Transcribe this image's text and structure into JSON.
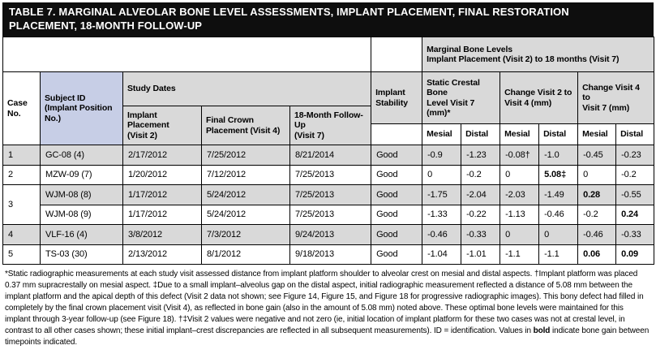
{
  "title": "TABLE 7. MARGINAL ALVEOLAR BONE LEVEL ASSESSMENTS, IMPLANT PLACEMENT, FINAL RESTORATION\nPLACEMENT, 18-MONTH FOLLOW-UP",
  "colors": {
    "title_bg": "#0e0e0e",
    "header_gray": "#d9d9d9",
    "subject_blue": "#c7cee6",
    "row_shade": "#d9d9d9",
    "border": "#000000"
  },
  "table": {
    "header": {
      "marginal_group": "Marginal Bone Levels\nImplant Placement (Visit 2) to 18 months (Visit 7)",
      "case_no": "Case No.",
      "subject_id": "Subject ID\n(Implant Position\nNo.)",
      "study_dates": "Study Dates",
      "implant_placement": "Implant Placement\n(Visit 2)",
      "final_crown": "Final Crown\nPlacement (Visit 4)",
      "follow_up": "18-Month Follow-Up\n(Visit 7)",
      "implant_stability": "Implant\nStability",
      "static_crestal": "Static Crestal Bone\nLevel Visit 7 (mm)*",
      "change_v2_v4": "Change Visit 2 to\nVisit 4 (mm)",
      "change_v4_v7": "Change Visit 4 to\nVisit 7 (mm)",
      "mesial": "Mesial",
      "distal": "Distal"
    },
    "rows": [
      {
        "case_no": "1",
        "case_rowspan": 1,
        "shaded": true,
        "subject_id": "GC-08 (4)",
        "implant_placement": "2/17/2012",
        "final_crown": "7/25/2012",
        "follow_up": "8/21/2014",
        "stability": "Good",
        "values": [
          "-0.9",
          "-1.23",
          "-0.08†",
          "-1.0",
          "-0.45",
          "-0.23"
        ],
        "bold_indices": []
      },
      {
        "case_no": "2",
        "case_rowspan": 1,
        "shaded": false,
        "subject_id": "MZW-09 (7)",
        "implant_placement": "1/20/2012",
        "final_crown": "7/12/2012",
        "follow_up": "7/25/2013",
        "stability": "Good",
        "values": [
          "0",
          "-0.2",
          "0",
          "5.08‡",
          "0",
          "-0.2"
        ],
        "bold_indices": [
          3
        ]
      },
      {
        "case_no": "3",
        "case_rowspan": 2,
        "shaded": true,
        "subject_id": "WJM-08 (8)",
        "implant_placement": "1/17/2012",
        "final_crown": "5/24/2012",
        "follow_up": "7/25/2013",
        "stability": "Good",
        "values": [
          "-1.75",
          "-2.04",
          "-2.03",
          "-1.49",
          "0.28",
          "-0.55"
        ],
        "bold_indices": [
          4
        ]
      },
      {
        "case_no": null,
        "case_rowspan": 0,
        "shaded": false,
        "subject_id": "WJM-08 (9)",
        "implant_placement": "1/17/2012",
        "final_crown": "5/24/2012",
        "follow_up": "7/25/2013",
        "stability": "Good",
        "values": [
          "-1.33",
          "-0.22",
          "-1.13",
          "-0.46",
          "-0.2",
          "0.24"
        ],
        "bold_indices": [
          5
        ]
      },
      {
        "case_no": "4",
        "case_rowspan": 1,
        "shaded": true,
        "subject_id": "VLF-16 (4)",
        "implant_placement": "3/8/2012",
        "final_crown": "7/3/2012",
        "follow_up": "9/24/2013",
        "stability": "Good",
        "values": [
          "-0.46",
          "-0.33",
          "0",
          "0",
          "-0.46",
          "-0.33"
        ],
        "bold_indices": []
      },
      {
        "case_no": "5",
        "case_rowspan": 1,
        "shaded": false,
        "subject_id": "TS-03 (30)",
        "implant_placement": "2/13/2012",
        "final_crown": "8/1/2012",
        "follow_up": "9/18/2013",
        "stability": "Good",
        "values": [
          "-1.04",
          "-1.01",
          "-1.1",
          "-1.1",
          "0.06",
          "0.09"
        ],
        "bold_indices": [
          4,
          5
        ]
      }
    ]
  },
  "footnote": {
    "segments": [
      {
        "text": "*Static radiographic measurements at each study visit assessed distance from implant platform shoulder to alveolar crest on mesial and distal aspects. †Implant platform was placed 0.37 mm supracrestally on mesial aspect. ‡Due to a small implant–alveolus gap on the distal aspect, initial radiographic measurement reflected a distance of 5.08 mm between the implant platform and the apical depth of this defect (Visit 2 data not shown; see Figure 14, Figure 15, and Figure 18 for progressive radiographic images). This bony defect had filled in completely by the final crown placement visit (Visit 4), as reflected in bone gain (also in the amount of 5.08 mm) noted above. These optimal bone levels were maintained for this implant through 3-year follow-up (see Figure 18). †‡Visit 2 values were negative and not zero (ie, initial location of implant platform for these two cases was not at crestal level, in contrast to all other cases shown; these initial implant–crest discrepancies are reflected in all subsequent measurements). ID = identification. Values in ",
        "bold": false
      },
      {
        "text": "bold",
        "bold": true
      },
      {
        "text": " indicate bone gain between timepoints indicated.",
        "bold": false
      }
    ]
  }
}
